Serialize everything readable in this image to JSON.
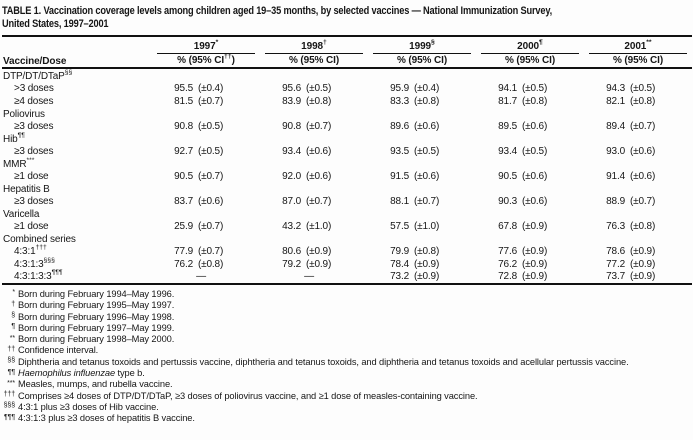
{
  "table": {
    "title_line1": "TABLE 1. Vaccination coverage levels among children aged 19–35 months, by selected vaccines — National Immunization Survey,",
    "title_line2": "United States, 1997–2001"
  },
  "header": {
    "row_label": "Vaccine/Dose",
    "years": [
      {
        "label": "1997",
        "marker": "*",
        "sub_pre": "% (95% CI",
        "sub_sup": "††",
        "sub_post": ")"
      },
      {
        "label": "1998",
        "marker": "†",
        "sub_pre": "%  (95% CI",
        "sub_sup": "",
        "sub_post": ")"
      },
      {
        "label": "1999",
        "marker": "§",
        "sub_pre": "%  (95% CI",
        "sub_sup": "",
        "sub_post": ")"
      },
      {
        "label": "2000",
        "marker": "¶",
        "sub_pre": "%  (95% CI",
        "sub_sup": "",
        "sub_post": ")"
      },
      {
        "label": "2001",
        "marker": "**",
        "sub_pre": "%  (95% CI",
        "sub_sup": "",
        "sub_post": ")"
      }
    ]
  },
  "rows": [
    {
      "type": "group",
      "label": "DTP/DT/DTaP",
      "sup": "§§"
    },
    {
      "type": "data",
      "label": ">3 doses",
      "sup": "",
      "cells": [
        [
          "95.5",
          "(±0.4)"
        ],
        [
          "95.6",
          "(±0.5)"
        ],
        [
          "95.9",
          "(±0.4)"
        ],
        [
          "94.1",
          "(±0.5)"
        ],
        [
          "94.3",
          "(±0.5)"
        ]
      ]
    },
    {
      "type": "data",
      "label": "≥4 doses",
      "sup": "",
      "cells": [
        [
          "81.5",
          "(±0.7)"
        ],
        [
          "83.9",
          "(±0.8)"
        ],
        [
          "83.3",
          "(±0.8)"
        ],
        [
          "81.7",
          "(±0.8)"
        ],
        [
          "82.1",
          "(±0.8)"
        ]
      ]
    },
    {
      "type": "group",
      "label": "Poliovirus",
      "sup": ""
    },
    {
      "type": "data",
      "label": "≥3 doses",
      "sup": "",
      "cells": [
        [
          "90.8",
          "(±0.5)"
        ],
        [
          "90.8",
          "(±0.7)"
        ],
        [
          "89.6",
          "(±0.6)"
        ],
        [
          "89.5",
          "(±0.6)"
        ],
        [
          "89.4",
          "(±0.7)"
        ]
      ]
    },
    {
      "type": "group",
      "label": "Hib",
      "sup": "¶¶"
    },
    {
      "type": "data",
      "label": "≥3 doses",
      "sup": "",
      "cells": [
        [
          "92.7",
          "(±0.5)"
        ],
        [
          "93.4",
          "(±0.6)"
        ],
        [
          "93.5",
          "(±0.5)"
        ],
        [
          "93.4",
          "(±0.5)"
        ],
        [
          "93.0",
          "(±0.6)"
        ]
      ]
    },
    {
      "type": "group",
      "label": "MMR",
      "sup": "***"
    },
    {
      "type": "data",
      "label": "≥1 dose",
      "sup": "",
      "cells": [
        [
          "90.5",
          "(±0.7)"
        ],
        [
          "92.0",
          "(±0.6)"
        ],
        [
          "91.5",
          "(±0.6)"
        ],
        [
          "90.5",
          "(±0.6)"
        ],
        [
          "91.4",
          "(±0.6)"
        ]
      ]
    },
    {
      "type": "group",
      "label": "Hepatitis B",
      "sup": ""
    },
    {
      "type": "data",
      "label": "≥3 doses",
      "sup": "",
      "cells": [
        [
          "83.7",
          "(±0.6)"
        ],
        [
          "87.0",
          "(±0.7)"
        ],
        [
          "88.1",
          "(±0.7)"
        ],
        [
          "90.3",
          "(±0.6)"
        ],
        [
          "88.9",
          "(±0.7)"
        ]
      ]
    },
    {
      "type": "group",
      "label": "Varicella",
      "sup": ""
    },
    {
      "type": "data",
      "label": "≥1 dose",
      "sup": "",
      "cells": [
        [
          "25.9",
          "(±0.7)"
        ],
        [
          "43.2",
          "(±1.0)"
        ],
        [
          "57.5",
          "(±1.0)"
        ],
        [
          "67.8",
          "(±0.9)"
        ],
        [
          "76.3",
          "(±0.8)"
        ]
      ]
    },
    {
      "type": "group",
      "label": "Combined series",
      "sup": ""
    },
    {
      "type": "data",
      "label": "4:3:1",
      "sup": "†††",
      "cells": [
        [
          "77.9",
          "(±0.7)"
        ],
        [
          "80.6",
          "(±0.9)"
        ],
        [
          "79.9",
          "(±0.8)"
        ],
        [
          "77.6",
          "(±0.9)"
        ],
        [
          "78.6",
          "(±0.9)"
        ]
      ]
    },
    {
      "type": "data",
      "label": "4:3:1:3",
      "sup": "§§§",
      "cells": [
        [
          "76.2",
          "(±0.8)"
        ],
        [
          "79.2",
          "(±0.9)"
        ],
        [
          "78.4",
          "(±0.9)"
        ],
        [
          "76.2",
          "(±0.9)"
        ],
        [
          "77.2",
          "(±0.9)"
        ]
      ]
    },
    {
      "type": "data",
      "label": "4:3:1:3:3",
      "sup": "¶¶¶",
      "cells": [
        [
          "—"
        ],
        [
          "—"
        ],
        [
          "73.2",
          "(±0.9)"
        ],
        [
          "72.8",
          "(±0.9)"
        ],
        [
          "73.7",
          "(±0.9)"
        ]
      ]
    }
  ],
  "footnotes": [
    {
      "marker": "*",
      "italic": "",
      "text": "Born during February 1994–May 1996."
    },
    {
      "marker": "†",
      "italic": "",
      "text": "Born during February 1995–May 1997."
    },
    {
      "marker": "§",
      "italic": "",
      "text": "Born during February 1996–May 1998."
    },
    {
      "marker": "¶",
      "italic": "",
      "text": "Born during February 1997–May 1999."
    },
    {
      "marker": "**",
      "italic": "",
      "text": "Born during February 1998–May 2000."
    },
    {
      "marker": "††",
      "italic": "",
      "text": "Confidence interval."
    },
    {
      "marker": "§§",
      "italic": "",
      "text": "Diphtheria and tetanus toxoids and pertussis vaccine, diphtheria and tetanus toxoids, and diphtheria and tetanus toxoids and acellular pertussis vaccine."
    },
    {
      "marker": "¶¶",
      "italic": "Haemophilus influenzae",
      "text": " type b."
    },
    {
      "marker": "***",
      "italic": "",
      "text": "Measles, mumps, and rubella vaccine."
    },
    {
      "marker": "†††",
      "italic": "",
      "text": "Comprises ≥4 doses of DTP/DT/DTaP, ≥3 doses of poliovirus vaccine, and ≥1 dose of measles-containing vaccine."
    },
    {
      "marker": "§§§",
      "italic": "",
      "text": "4:3:1 plus ≥3 doses of Hib vaccine."
    },
    {
      "marker": "¶¶¶",
      "italic": "",
      "text": "4:3:1:3 plus ≥3 doses of hepatitis B vaccine."
    }
  ]
}
